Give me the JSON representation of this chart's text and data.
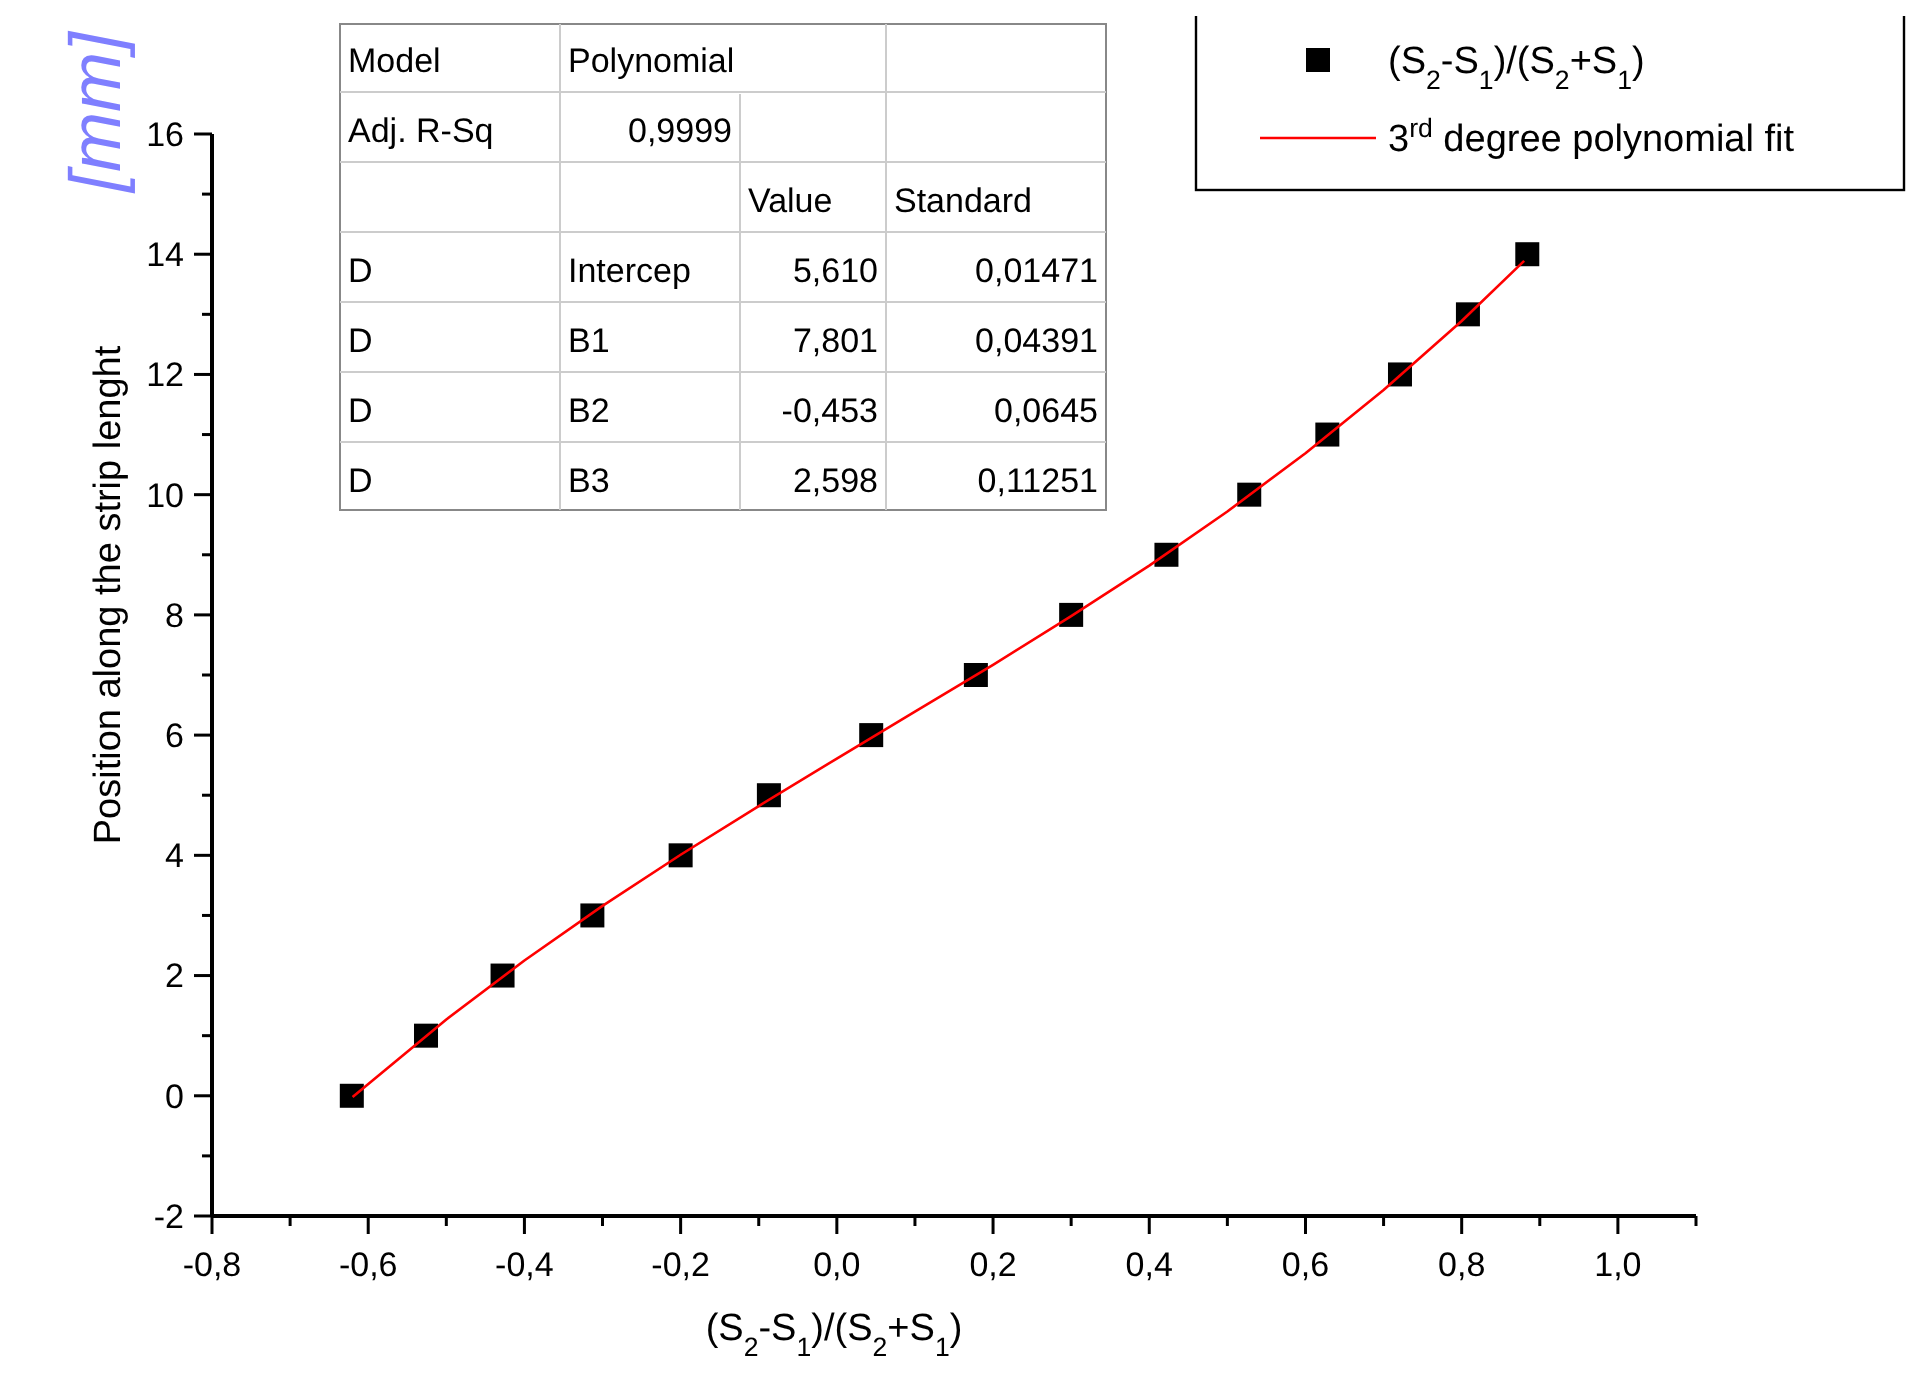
{
  "chart_data": {
    "type": "scatter",
    "xlabel": "(S$_{2}$-S$_{1}$)/(S$_{2}$+S$_{1}$)",
    "ylabel": "Position along the strip lenght",
    "annotations": [
      "[mm]",
      "Model",
      "Polynomial",
      "Adj. R-Sq",
      "0,9999",
      "Value",
      "Standard",
      "D",
      "Intercep",
      "5,610",
      "0,01471",
      "D",
      "B1",
      "7,801",
      "0,04391",
      "D",
      "B2",
      "-0,453",
      "0,0645",
      "D",
      "B3",
      "2,598",
      "0,11251"
    ],
    "xlim": [
      -0.8,
      1.1
    ],
    "xticks": [
      {
        "value": -0.8,
        "label": "-0,8"
      },
      {
        "value": -0.7,
        "label": null
      },
      {
        "value": -0.6,
        "label": "-0,6"
      },
      {
        "value": -0.5,
        "label": null
      },
      {
        "value": -0.4,
        "label": "-0,4"
      },
      {
        "value": -0.3,
        "label": null
      },
      {
        "value": -0.2,
        "label": "-0,2"
      },
      {
        "value": -0.1,
        "label": null
      },
      {
        "value": 0,
        "label": "0,0"
      },
      {
        "value": 0.1,
        "label": null
      },
      {
        "value": 0.2,
        "label": "0,2"
      },
      {
        "value": 0.3,
        "label": null
      },
      {
        "value": 0.4,
        "label": "0,4"
      },
      {
        "value": 0.5,
        "label": null
      },
      {
        "value": 0.6,
        "label": "0,6"
      },
      {
        "value": 0.7,
        "label": null
      },
      {
        "value": 0.8,
        "label": "0,8"
      },
      {
        "value": 0.9,
        "label": null
      },
      {
        "value": 1.0,
        "label": "1,0"
      },
      {
        "value": 1.1,
        "label": null
      }
    ],
    "ylim": [
      -2,
      16
    ],
    "yticks": [
      -2,
      {
        "value": -1,
        "label": null
      },
      0,
      {
        "value": 1,
        "label": null
      },
      2,
      {
        "value": 3,
        "label": null
      },
      4,
      {
        "value": 5,
        "label": null
      },
      6,
      {
        "value": 7,
        "label": null
      },
      8,
      {
        "value": 9,
        "label": null
      },
      10,
      {
        "value": 11,
        "label": null
      },
      12,
      {
        "value": 13,
        "label": null
      },
      14,
      {
        "value": 15,
        "label": null
      },
      16
    ],
    "grid": false,
    "legend": "top right",
    "series": [
      {
        "name": "(S$_{2}$-S$_{1}$)/(S$_{2}$+S$_{1}$)",
        "type": "scatter",
        "marker": "square",
        "color": "#000000",
        "x": [
          -0.621,
          -0.526,
          -0.428,
          -0.313,
          -0.2,
          -0.087,
          0.044,
          0.178,
          0.3,
          0.422,
          0.528,
          0.628,
          0.721,
          0.808,
          0.884
        ],
        "values": [
          0,
          1,
          2,
          3,
          4,
          5,
          6,
          7,
          8,
          9,
          10,
          11,
          12,
          13,
          14
        ]
      },
      {
        "name": "3$^{rd}$ degree polynomial fit",
        "type": "line",
        "marker": "none",
        "line_style": "solid",
        "color": "#ff0000",
        "x": [
          -0.62,
          -0.5,
          -0.4,
          -0.3,
          -0.2,
          -0.1,
          0,
          0.1,
          0.2,
          0.3,
          0.4,
          0.5,
          0.6,
          0.7,
          0.8,
          0.88
        ],
        "values": [
          -0.02,
          1.27,
          2.25,
          3.16,
          4.01,
          4.82,
          5.61,
          6.39,
          7.17,
          7.98,
          8.82,
          9.72,
          10.69,
          11.74,
          12.89,
          13.89
        ]
      }
    ]
  }
}
